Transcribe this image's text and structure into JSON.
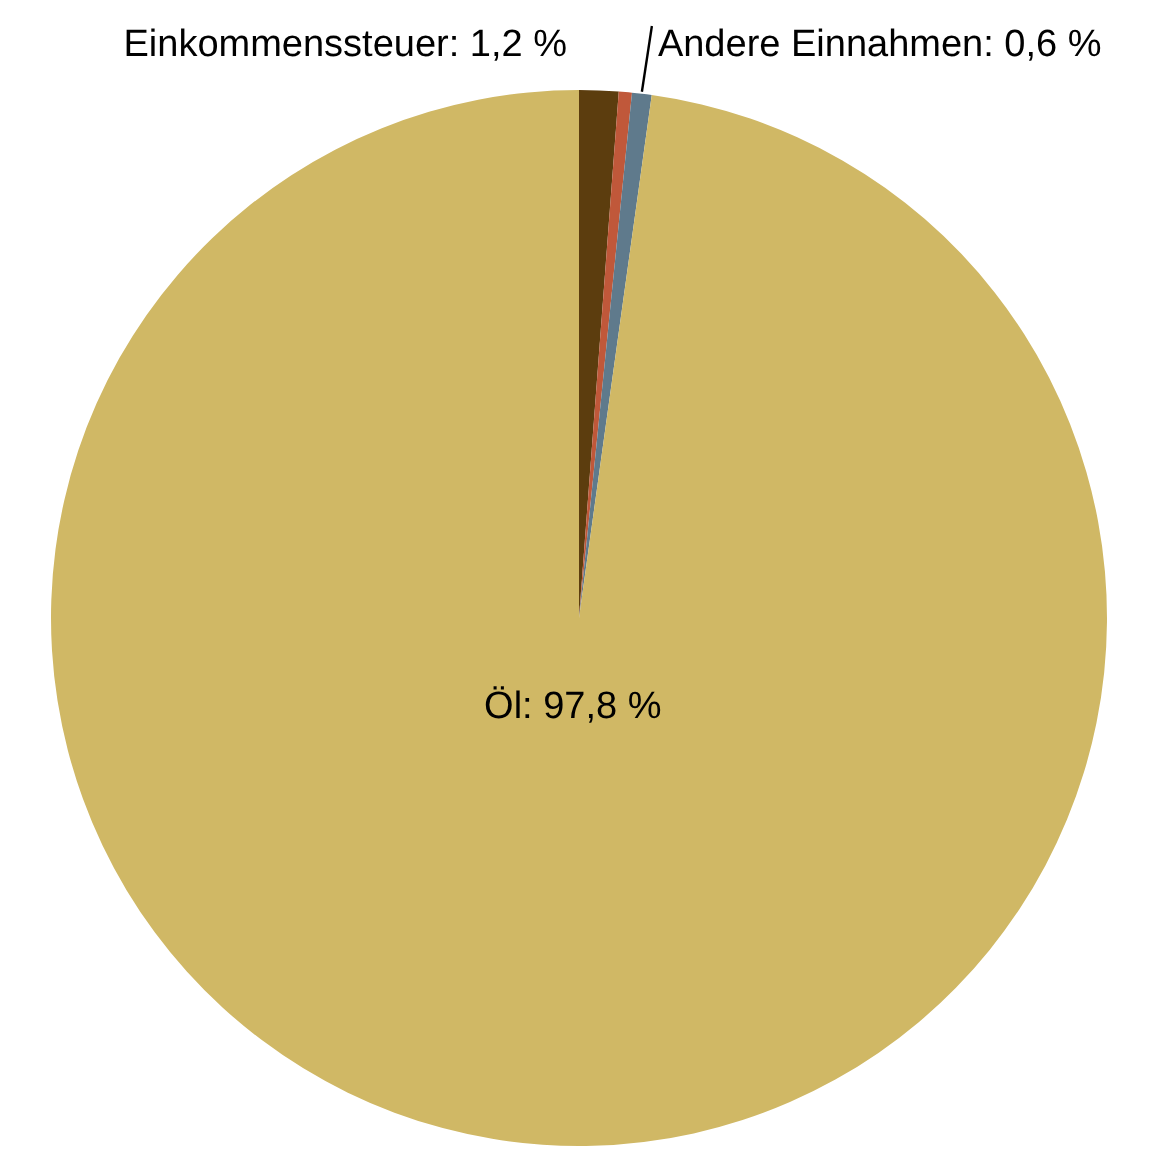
{
  "chart_data": {
    "type": "pie",
    "categories": [
      "Einkommenssteuer",
      null,
      "Andere Einnahmen",
      "Öl"
    ],
    "values": [
      1.2,
      0.4,
      0.6,
      97.8
    ],
    "colors": [
      "#5c3d0e",
      "#c0583a",
      "#5f7a8c",
      "#d0b865"
    ],
    "value_labels": [
      "1,2 %",
      null,
      "0,6 %",
      "97,8 %"
    ],
    "legend": false
  }
}
